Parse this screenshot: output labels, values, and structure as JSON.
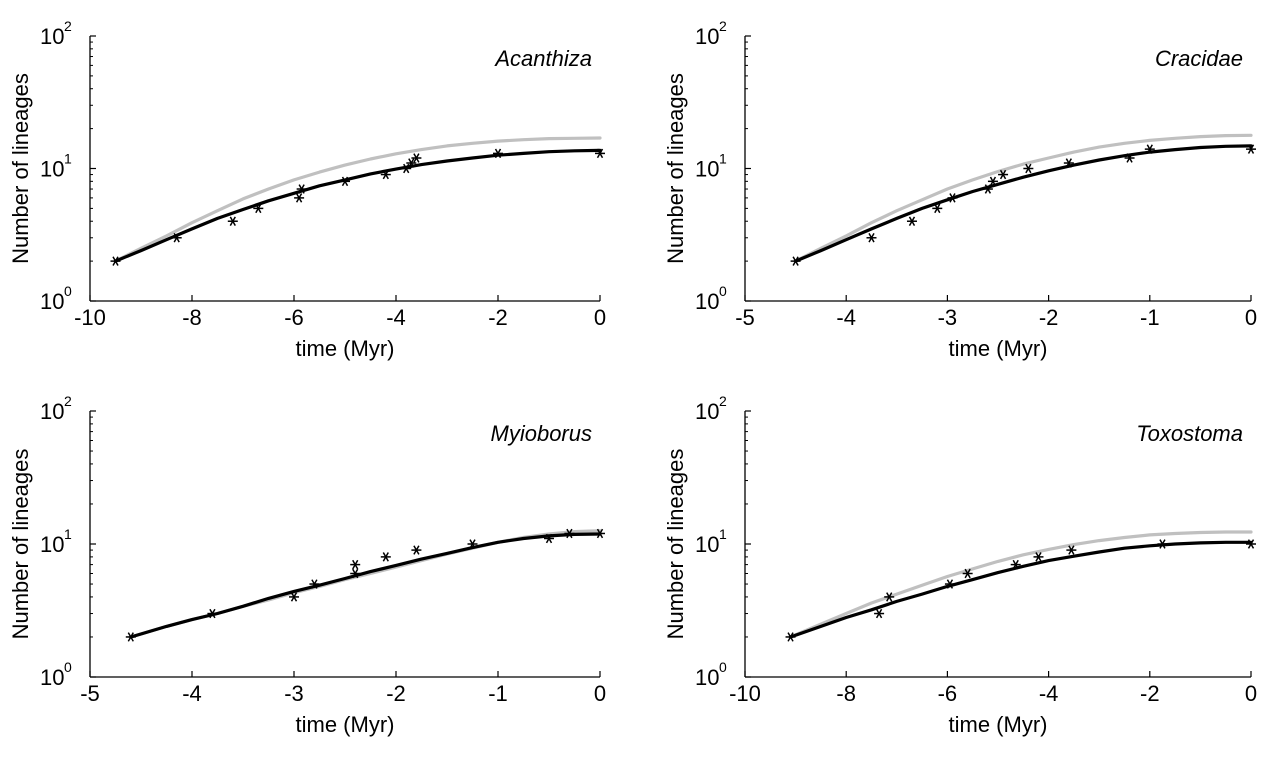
{
  "figure": {
    "colors": {
      "model_a": "#c0c0c0",
      "model_b": "#000000",
      "observed": "#000000"
    }
  },
  "chart_data": [
    {
      "type": "line",
      "title": "Acanthiza",
      "xlabel": "time (Myr)",
      "ylabel": "Number of lineages",
      "xlim": [
        -10,
        0
      ],
      "ylim": [
        1,
        100
      ],
      "yscale": "log",
      "xticks": [
        -10,
        -8,
        -6,
        -4,
        -2,
        0
      ],
      "xtick_labels": [
        "-10",
        "-8",
        "-6",
        "-4",
        "-2",
        "0"
      ],
      "ytick_labels": [
        {
          "base": "10",
          "exp": "0",
          "value": 1
        },
        {
          "base": "10",
          "exp": "1",
          "value": 10
        },
        {
          "base": "10",
          "exp": "2",
          "value": 100
        }
      ],
      "grid": false,
      "series": [
        {
          "role": "model_a",
          "style": "line",
          "x": [
            -9.5,
            -9,
            -8.5,
            -8,
            -7.5,
            -7,
            -6.5,
            -6,
            -5.5,
            -5,
            -4.5,
            -4,
            -3.5,
            -3,
            -2.5,
            -2,
            -1.5,
            -1,
            -0.5,
            0
          ],
          "y": [
            2.0,
            2.5,
            3.1,
            3.9,
            4.8,
            5.9,
            7.0,
            8.2,
            9.4,
            10.6,
            11.8,
            12.9,
            13.9,
            14.8,
            15.5,
            16.1,
            16.5,
            16.8,
            16.9,
            17.0
          ]
        },
        {
          "role": "model_b",
          "style": "line",
          "x": [
            -9.5,
            -9,
            -8.5,
            -8,
            -7.5,
            -7,
            -6.5,
            -6,
            -5.5,
            -5,
            -4.5,
            -4,
            -3.5,
            -3,
            -2.5,
            -2,
            -1.5,
            -1,
            -0.5,
            0
          ],
          "y": [
            2.0,
            2.4,
            2.9,
            3.5,
            4.2,
            4.9,
            5.7,
            6.5,
            7.4,
            8.2,
            9.1,
            9.9,
            10.7,
            11.4,
            12.0,
            12.6,
            13.0,
            13.4,
            13.6,
            13.7
          ]
        },
        {
          "role": "observed",
          "style": "marker",
          "x": [
            -9.5,
            -8.3,
            -7.2,
            -6.7,
            -5.9,
            -5.85,
            -5.0,
            -4.2,
            -3.8,
            -3.7,
            -3.6,
            -2.0,
            0
          ],
          "y": [
            2,
            3,
            4,
            5,
            6,
            7,
            8,
            9,
            10,
            11,
            12,
            13,
            13
          ]
        }
      ]
    },
    {
      "type": "line",
      "title": "Cracidae",
      "xlabel": "time (Myr)",
      "ylabel": "Number of lineages",
      "xlim": [
        -5,
        0
      ],
      "ylim": [
        1,
        100
      ],
      "yscale": "log",
      "xticks": [
        -5,
        -4,
        -3,
        -2,
        -1,
        0
      ],
      "xtick_labels": [
        "-5",
        "-4",
        "-3",
        "-2",
        "-1",
        "0"
      ],
      "ytick_labels": [
        {
          "base": "10",
          "exp": "0",
          "value": 1
        },
        {
          "base": "10",
          "exp": "1",
          "value": 10
        },
        {
          "base": "10",
          "exp": "2",
          "value": 100
        }
      ],
      "grid": false,
      "series": [
        {
          "role": "model_a",
          "style": "line",
          "x": [
            -4.5,
            -4.25,
            -4,
            -3.75,
            -3.5,
            -3.25,
            -3,
            -2.75,
            -2.5,
            -2.25,
            -2,
            -1.75,
            -1.5,
            -1.25,
            -1,
            -0.75,
            -0.5,
            -0.25,
            0
          ],
          "y": [
            2.0,
            2.5,
            3.1,
            3.9,
            4.8,
            5.8,
            7.0,
            8.2,
            9.5,
            10.8,
            12.0,
            13.3,
            14.5,
            15.5,
            16.3,
            16.9,
            17.4,
            17.7,
            17.8
          ]
        },
        {
          "role": "model_b",
          "style": "line",
          "x": [
            -4.5,
            -4.25,
            -4,
            -3.75,
            -3.5,
            -3.25,
            -3,
            -2.75,
            -2.5,
            -2.25,
            -2,
            -1.75,
            -1.5,
            -1.25,
            -1,
            -0.75,
            -0.5,
            -0.25,
            0
          ],
          "y": [
            2.0,
            2.4,
            2.9,
            3.5,
            4.2,
            5.0,
            5.8,
            6.7,
            7.6,
            8.6,
            9.6,
            10.6,
            11.6,
            12.5,
            13.3,
            13.9,
            14.4,
            14.7,
            14.8
          ]
        },
        {
          "role": "observed",
          "style": "marker",
          "x": [
            -4.5,
            -3.75,
            -3.35,
            -3.1,
            -2.95,
            -2.6,
            -2.55,
            -2.45,
            -2.2,
            -1.8,
            -1.2,
            -1.0,
            0
          ],
          "y": [
            2,
            3,
            4,
            5,
            6,
            7,
            8,
            9,
            10,
            11,
            12,
            14,
            14
          ]
        }
      ]
    },
    {
      "type": "line",
      "title": "Myioborus",
      "xlabel": "time (Myr)",
      "ylabel": "Number of lineages",
      "xlim": [
        -5,
        0
      ],
      "ylim": [
        1,
        100
      ],
      "yscale": "log",
      "xticks": [
        -5,
        -4,
        -3,
        -2,
        -1,
        0
      ],
      "xtick_labels": [
        "-5",
        "-4",
        "-3",
        "-2",
        "-1",
        "0"
      ],
      "ytick_labels": [
        {
          "base": "10",
          "exp": "0",
          "value": 1
        },
        {
          "base": "10",
          "exp": "1",
          "value": 10
        },
        {
          "base": "10",
          "exp": "2",
          "value": 100
        }
      ],
      "grid": false,
      "series": [
        {
          "role": "model_a",
          "style": "line",
          "x": [
            -4.6,
            -4.25,
            -4,
            -3.75,
            -3.5,
            -3.25,
            -3,
            -2.75,
            -2.5,
            -2.25,
            -2,
            -1.75,
            -1.5,
            -1.25,
            -1,
            -0.75,
            -0.5,
            -0.25,
            0
          ],
          "y": [
            2.0,
            2.4,
            2.7,
            3.0,
            3.4,
            3.8,
            4.3,
            4.8,
            5.4,
            6.0,
            6.7,
            7.5,
            8.4,
            9.3,
            10.3,
            11.2,
            11.9,
            12.4,
            12.6
          ]
        },
        {
          "role": "model_b",
          "style": "line",
          "x": [
            -4.6,
            -4.25,
            -4,
            -3.75,
            -3.5,
            -3.25,
            -3,
            -2.75,
            -2.5,
            -2.25,
            -2,
            -1.75,
            -1.5,
            -1.25,
            -1,
            -0.75,
            -0.5,
            -0.25,
            0
          ],
          "y": [
            2.0,
            2.4,
            2.7,
            3.0,
            3.4,
            3.9,
            4.4,
            4.9,
            5.5,
            6.2,
            6.9,
            7.7,
            8.5,
            9.4,
            10.3,
            11.0,
            11.5,
            11.8,
            11.9
          ]
        },
        {
          "role": "observed",
          "style": "marker",
          "x": [
            -4.6,
            -3.8,
            -3.0,
            -2.8,
            -2.4,
            -2.4,
            -2.1,
            -1.8,
            -1.25,
            -0.5,
            -0.3,
            0
          ],
          "y": [
            2,
            3,
            4,
            5,
            6,
            7,
            8,
            9,
            10,
            11,
            12,
            12
          ]
        }
      ]
    },
    {
      "type": "line",
      "title": "Toxostoma",
      "xlabel": "time (Myr)",
      "ylabel": "Number of lineages",
      "xlim": [
        -10,
        0
      ],
      "ylim": [
        1,
        100
      ],
      "yscale": "log",
      "xticks": [
        -10,
        -8,
        -6,
        -4,
        -2,
        0
      ],
      "xtick_labels": [
        "-10",
        "-8",
        "-6",
        "-4",
        "-2",
        "0"
      ],
      "ytick_labels": [
        {
          "base": "10",
          "exp": "0",
          "value": 1
        },
        {
          "base": "10",
          "exp": "1",
          "value": 10
        },
        {
          "base": "10",
          "exp": "2",
          "value": 100
        }
      ],
      "grid": false,
      "series": [
        {
          "role": "model_a",
          "style": "line",
          "x": [
            -9.1,
            -8.5,
            -8,
            -7.5,
            -7,
            -6.5,
            -6,
            -5.5,
            -5,
            -4.5,
            -4,
            -3.5,
            -3,
            -2.5,
            -2,
            -1.5,
            -1,
            -0.5,
            0
          ],
          "y": [
            2.0,
            2.5,
            3.0,
            3.6,
            4.2,
            4.9,
            5.7,
            6.5,
            7.4,
            8.3,
            9.1,
            9.9,
            10.6,
            11.2,
            11.7,
            12.0,
            12.2,
            12.3,
            12.3
          ]
        },
        {
          "role": "model_b",
          "style": "line",
          "x": [
            -9.1,
            -8.5,
            -8,
            -7.5,
            -7,
            -6.5,
            -6,
            -5.5,
            -5,
            -4.5,
            -4,
            -3.5,
            -3,
            -2.5,
            -2,
            -1.5,
            -1,
            -0.5,
            0
          ],
          "y": [
            2.0,
            2.4,
            2.8,
            3.2,
            3.7,
            4.2,
            4.8,
            5.4,
            6.1,
            6.8,
            7.5,
            8.1,
            8.7,
            9.3,
            9.7,
            10.0,
            10.2,
            10.3,
            10.3
          ]
        },
        {
          "role": "observed",
          "style": "marker",
          "x": [
            -9.1,
            -7.35,
            -7.15,
            -5.95,
            -5.6,
            -4.65,
            -4.2,
            -3.55,
            -1.75,
            0
          ],
          "y": [
            2,
            3,
            4,
            5,
            6,
            7,
            8,
            9,
            10,
            10
          ]
        }
      ]
    }
  ]
}
